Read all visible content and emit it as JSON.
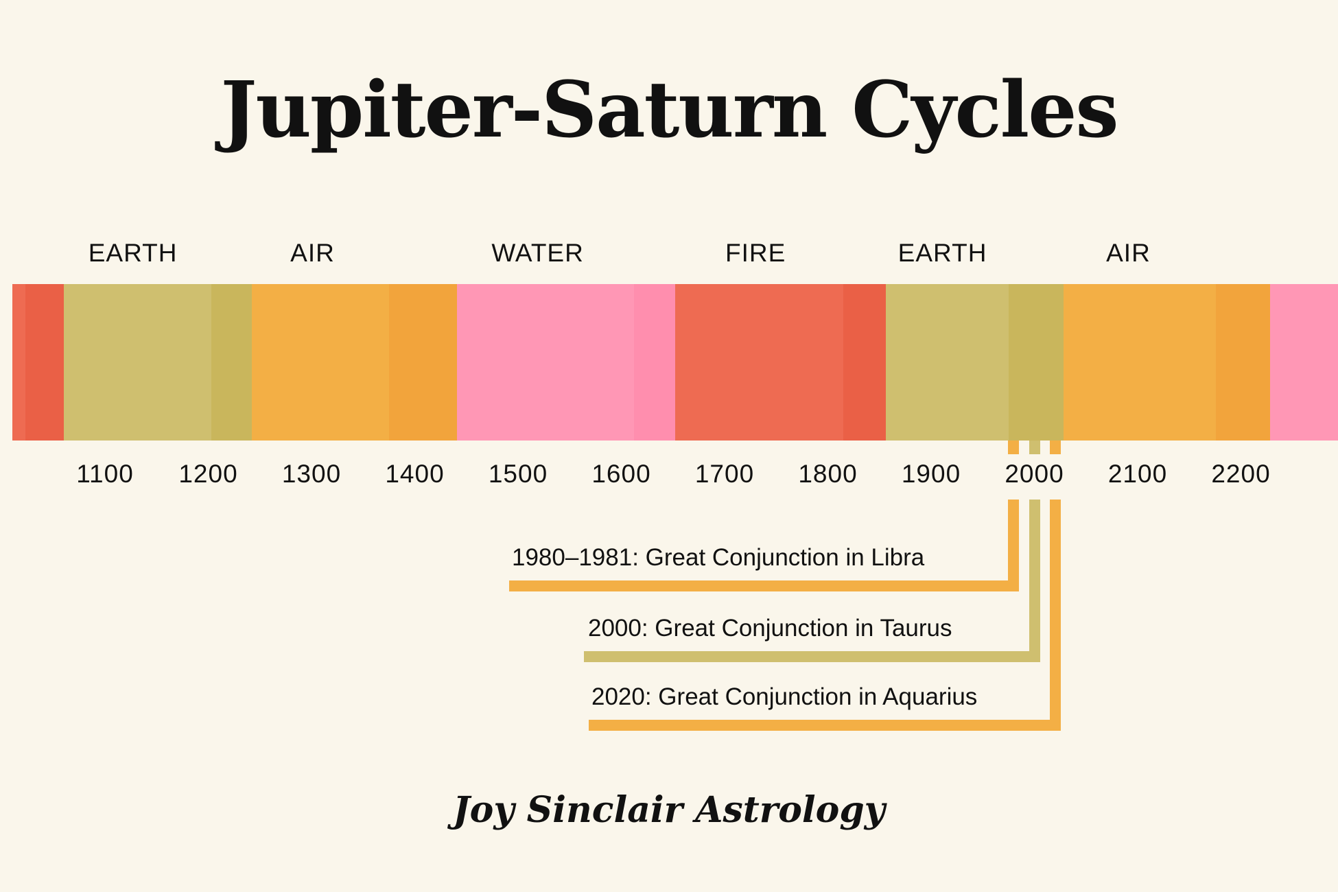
{
  "title": "Jupiter-Saturn Cycles",
  "footer": "Joy Sinclair Astrology",
  "colors": {
    "background": "#faf6eb",
    "earth": "#cfbf6f",
    "earth_dark": "#c9b65c",
    "air": "#f3af45",
    "air_dark": "#f2a43c",
    "water": "#ff97b5",
    "water_dark": "#ff8eae",
    "fire": "#ee6b52",
    "fire_dark": "#ea6046"
  },
  "elements": [
    {
      "label": "EARTH",
      "year": 1127
    },
    {
      "label": "AIR",
      "year": 1301
    },
    {
      "label": "WATER",
      "year": 1519
    },
    {
      "label": "FIRE",
      "year": 1730
    },
    {
      "label": "EARTH",
      "year": 1911
    },
    {
      "label": "AIR",
      "year": 2091
    }
  ],
  "bands": [
    {
      "name": "band-fire-start",
      "from": 1010,
      "to": 1023,
      "color": "#ee6b52"
    },
    {
      "name": "band-fire-start-late",
      "from": 1023,
      "to": 1060,
      "color": "#ea6046"
    },
    {
      "name": "band-earth-1",
      "from": 1060,
      "to": 1203,
      "color": "#cfbf6f"
    },
    {
      "name": "band-earth-1-late",
      "from": 1203,
      "to": 1242,
      "color": "#c9b65c"
    },
    {
      "name": "band-air-1",
      "from": 1242,
      "to": 1375,
      "color": "#f3af45"
    },
    {
      "name": "band-air-1-late",
      "from": 1375,
      "to": 1441,
      "color": "#f2a43c"
    },
    {
      "name": "band-water",
      "from": 1441,
      "to": 1612,
      "color": "#ff97b5"
    },
    {
      "name": "band-water-late",
      "from": 1612,
      "to": 1652,
      "color": "#ff8eae"
    },
    {
      "name": "band-fire",
      "from": 1652,
      "to": 1815,
      "color": "#ee6b52"
    },
    {
      "name": "band-fire-late",
      "from": 1815,
      "to": 1856,
      "color": "#ea6046"
    },
    {
      "name": "band-earth-2",
      "from": 1856,
      "to": 1975,
      "color": "#cfbf6f"
    },
    {
      "name": "band-earth-2-late",
      "from": 1975,
      "to": 2028,
      "color": "#c9b65c"
    },
    {
      "name": "band-air-2",
      "from": 2028,
      "to": 2176,
      "color": "#f3af45"
    },
    {
      "name": "band-air-2-late",
      "from": 2176,
      "to": 2228,
      "color": "#f2a43c"
    },
    {
      "name": "band-water-2",
      "from": 2228,
      "to": 2310,
      "color": "#ff97b5"
    }
  ],
  "ticks": [
    {
      "label": "1100",
      "year": 1100
    },
    {
      "label": "1200",
      "year": 1200
    },
    {
      "label": "1300",
      "year": 1300
    },
    {
      "label": "1400",
      "year": 1400
    },
    {
      "label": "1500",
      "year": 1500
    },
    {
      "label": "1600",
      "year": 1600
    },
    {
      "label": "1700",
      "year": 1700
    },
    {
      "label": "1800",
      "year": 1800
    },
    {
      "label": "1900",
      "year": 1900
    },
    {
      "label": "2000",
      "year": 2000
    },
    {
      "label": "2100",
      "year": 2100
    },
    {
      "label": "2200",
      "year": 2200
    }
  ],
  "annotations": [
    {
      "text": "1980–1981: Great Conjunction in Libra",
      "year": 1980,
      "color": "#f3af45"
    },
    {
      "text": "2000: Great Conjunction in Taurus",
      "year": 2000,
      "color": "#cfbf6f"
    },
    {
      "text": "2020: Great Conjunction in Aquarius",
      "year": 2020,
      "color": "#f3af45"
    }
  ]
}
